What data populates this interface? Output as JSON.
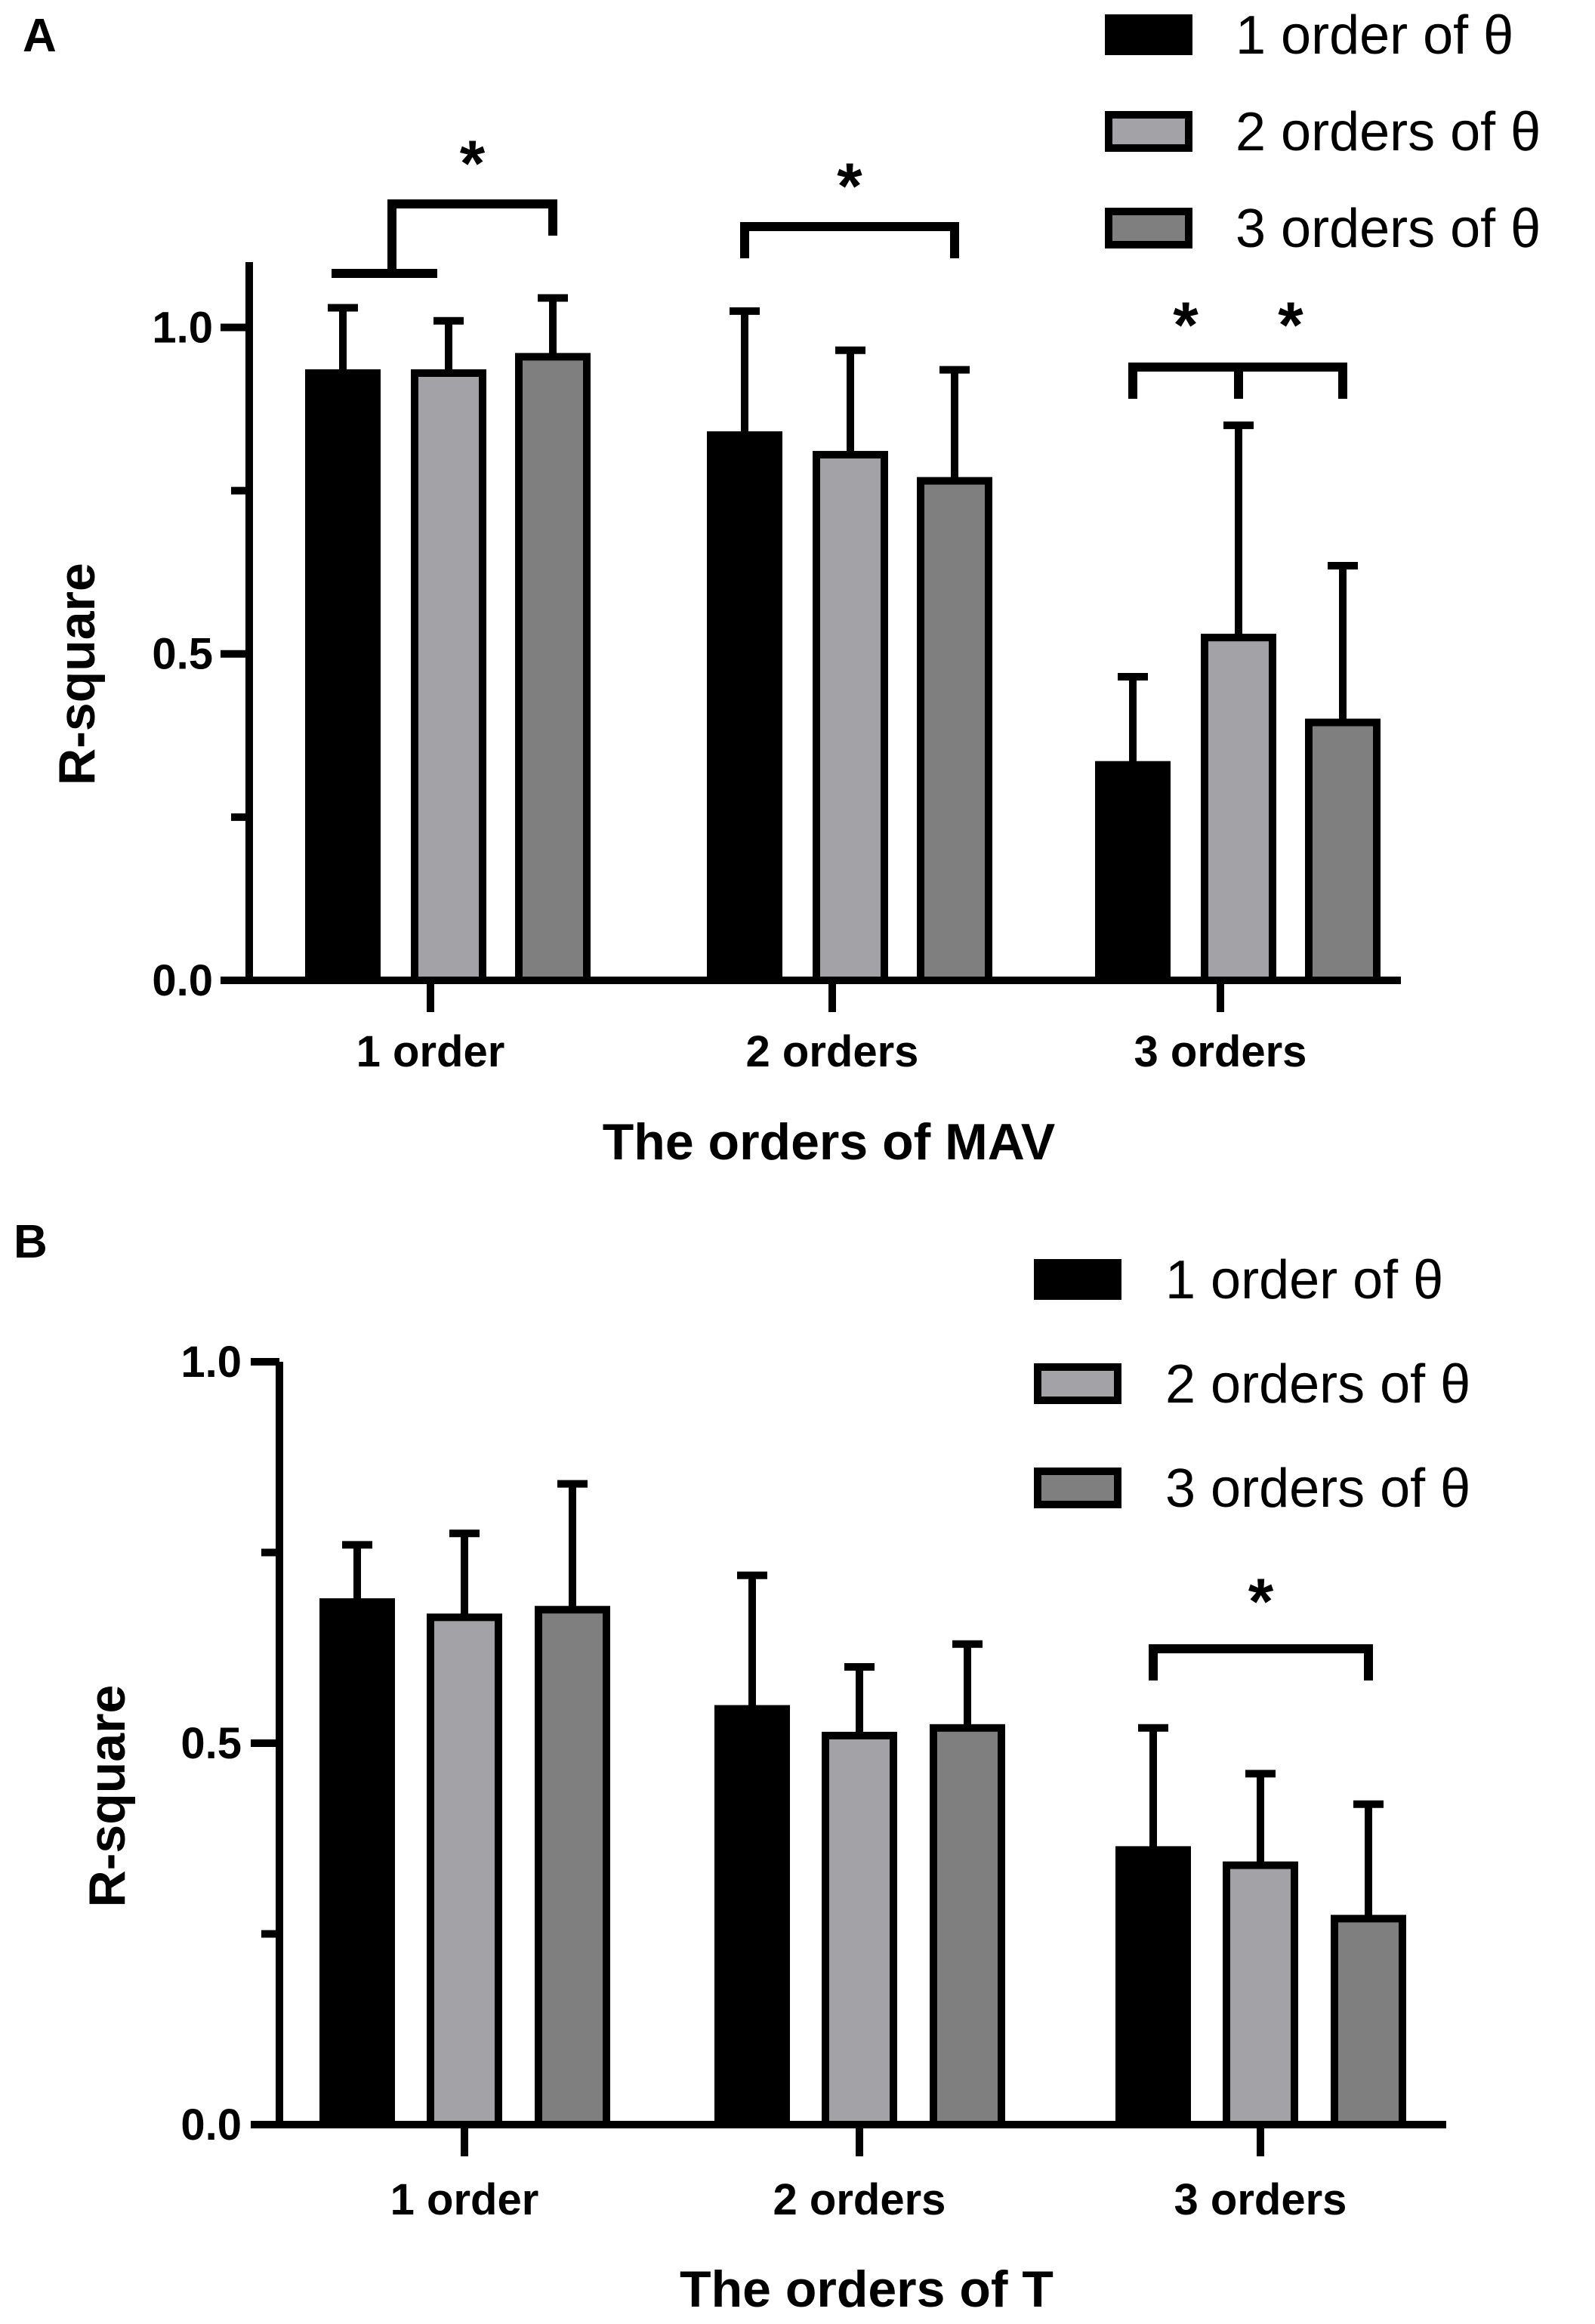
{
  "chart_data": [
    {
      "panel_label": "A",
      "type": "bar",
      "categories": [
        "1 order",
        "2 orders",
        "3 orders"
      ],
      "xlabel": "The orders of MAV",
      "ylabel": "R-square",
      "ylim": [
        0,
        1.1
      ],
      "yticks": [
        {
          "value": 0.0,
          "label": "0.0",
          "labeled": true
        },
        {
          "value": 0.25,
          "label": "",
          "labeled": false
        },
        {
          "value": 0.5,
          "label": "0.5",
          "labeled": true
        },
        {
          "value": 0.75,
          "label": "",
          "labeled": false
        },
        {
          "value": 1.0,
          "label": "1.0",
          "labeled": true
        }
      ],
      "grid": false,
      "legend_position": "top-right",
      "series": [
        {
          "name": "1 order of θ",
          "color": "#000000",
          "values": [
            0.93,
            0.835,
            0.33
          ],
          "errors": [
            0.1,
            0.19,
            0.135
          ]
        },
        {
          "name": "2 orders of θ",
          "color": "#a3a3a7",
          "values": [
            0.93,
            0.805,
            0.525
          ],
          "errors": [
            0.08,
            0.16,
            0.325
          ]
        },
        {
          "name": "3 orders of θ",
          "color": "#7f7f7f",
          "values": [
            0.955,
            0.765,
            0.395
          ],
          "errors": [
            0.09,
            0.17,
            0.24
          ]
        }
      ],
      "significance": [
        {
          "label": "*",
          "category": 0,
          "from_series": 0,
          "to_series": 2,
          "nested_pair": [
            0,
            1
          ]
        },
        {
          "label": "*",
          "category": 1,
          "from_series": 0,
          "to_series": 2
        },
        {
          "label": "*",
          "category": 2,
          "from_series": 0,
          "to_series": 1
        },
        {
          "label": "*",
          "category": 2,
          "from_series": 1,
          "to_series": 2
        }
      ]
    },
    {
      "panel_label": "B",
      "type": "bar",
      "categories": [
        "1 order",
        "2 orders",
        "3 orders"
      ],
      "xlabel": "The orders of T",
      "ylabel": "R-square",
      "ylim": [
        0,
        1.0
      ],
      "yticks": [
        {
          "value": 0.0,
          "label": "0.0",
          "labeled": true
        },
        {
          "value": 0.25,
          "label": "",
          "labeled": false
        },
        {
          "value": 0.5,
          "label": "0.5",
          "labeled": true
        },
        {
          "value": 0.75,
          "label": "",
          "labeled": false
        },
        {
          "value": 1.0,
          "label": "1.0",
          "labeled": true
        }
      ],
      "grid": false,
      "legend_position": "top-right",
      "series": [
        {
          "name": "1 order of θ",
          "color": "#000000",
          "values": [
            0.685,
            0.545,
            0.36
          ],
          "errors": [
            0.075,
            0.175,
            0.16
          ]
        },
        {
          "name": "2 orders of θ",
          "color": "#a3a3a7",
          "values": [
            0.665,
            0.51,
            0.34
          ],
          "errors": [
            0.11,
            0.09,
            0.12
          ]
        },
        {
          "name": "3 orders of θ",
          "color": "#7f7f7f",
          "values": [
            0.675,
            0.52,
            0.27
          ],
          "errors": [
            0.165,
            0.11,
            0.15
          ]
        }
      ],
      "significance": [
        {
          "label": "*",
          "category": 2,
          "from_series": 0,
          "to_series": 2
        }
      ]
    }
  ]
}
